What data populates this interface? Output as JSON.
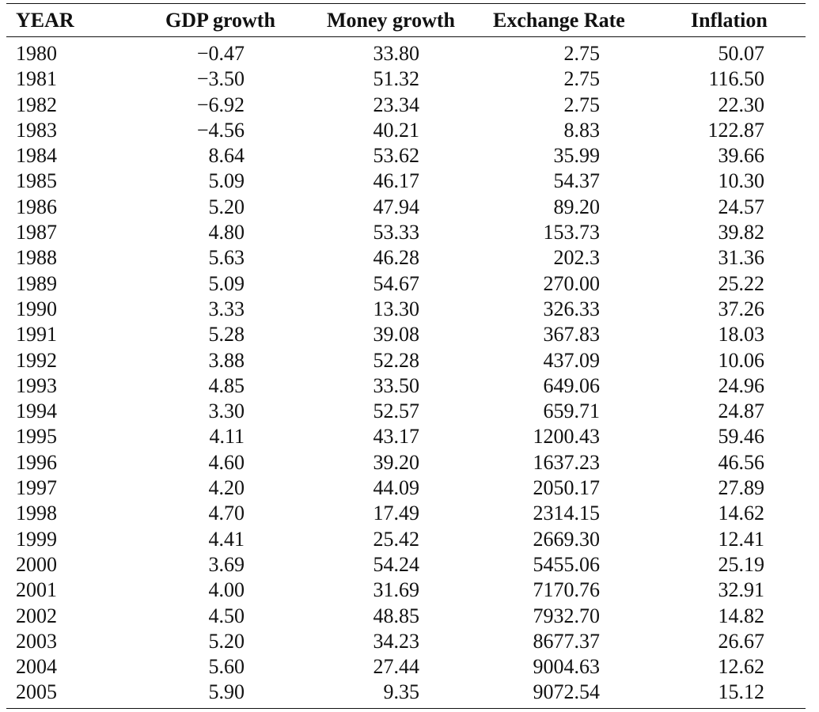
{
  "table": {
    "columns": [
      "YEAR",
      "GDP growth",
      "Money growth",
      "Exchange Rate",
      "Inflation"
    ],
    "rows": [
      [
        "1980",
        "−0.47",
        "33.80",
        "2.75",
        "50.07"
      ],
      [
        "1981",
        "−3.50",
        "51.32",
        "2.75",
        "116.50"
      ],
      [
        "1982",
        "−6.92",
        "23.34",
        "2.75",
        "22.30"
      ],
      [
        "1983",
        "−4.56",
        "40.21",
        "8.83",
        "122.87"
      ],
      [
        "1984",
        "8.64",
        "53.62",
        "35.99",
        "39.66"
      ],
      [
        "1985",
        "5.09",
        "46.17",
        "54.37",
        "10.30"
      ],
      [
        "1986",
        "5.20",
        "47.94",
        "89.20",
        "24.57"
      ],
      [
        "1987",
        "4.80",
        "53.33",
        "153.73",
        "39.82"
      ],
      [
        "1988",
        "5.63",
        "46.28",
        "202.3",
        "31.36"
      ],
      [
        "1989",
        "5.09",
        "54.67",
        "270.00",
        "25.22"
      ],
      [
        "1990",
        "3.33",
        "13.30",
        "326.33",
        "37.26"
      ],
      [
        "1991",
        "5.28",
        "39.08",
        "367.83",
        "18.03"
      ],
      [
        "1992",
        "3.88",
        "52.28",
        "437.09",
        "10.06"
      ],
      [
        "1993",
        "4.85",
        "33.50",
        "649.06",
        "24.96"
      ],
      [
        "1994",
        "3.30",
        "52.57",
        "659.71",
        "24.87"
      ],
      [
        "1995",
        "4.11",
        "43.17",
        "1200.43",
        "59.46"
      ],
      [
        "1996",
        "4.60",
        "39.20",
        "1637.23",
        "46.56"
      ],
      [
        "1997",
        "4.20",
        "44.09",
        "2050.17",
        "27.89"
      ],
      [
        "1998",
        "4.70",
        "17.49",
        "2314.15",
        "14.62"
      ],
      [
        "1999",
        "4.41",
        "25.42",
        "2669.30",
        "12.41"
      ],
      [
        "2000",
        "3.69",
        "54.24",
        "5455.06",
        "25.19"
      ],
      [
        "2001",
        "4.00",
        "31.69",
        "7170.76",
        "32.91"
      ],
      [
        "2002",
        "4.50",
        "48.85",
        "7932.70",
        "14.82"
      ],
      [
        "2003",
        "5.20",
        "34.23",
        "8677.37",
        "26.67"
      ],
      [
        "2004",
        "5.60",
        "27.44",
        "9004.63",
        "12.62"
      ],
      [
        "2005",
        "5.90",
        "9.35",
        "9072.54",
        "15.12"
      ]
    ]
  }
}
